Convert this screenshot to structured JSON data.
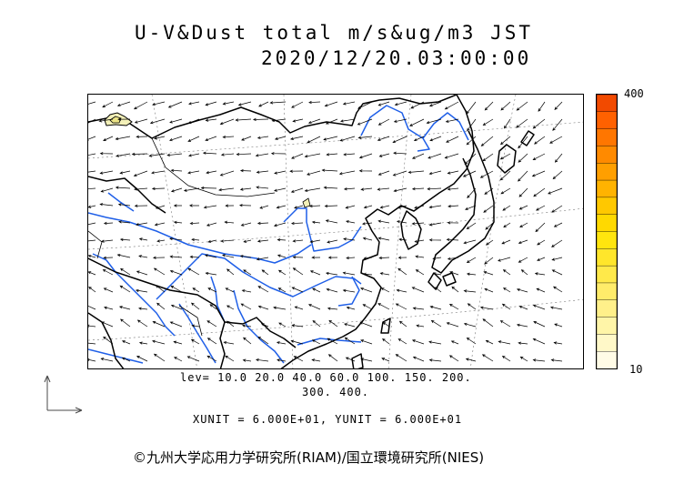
{
  "header": {
    "title": "U-V&Dust total m/s&ug/m3 JST",
    "datetime": "2020/12/20.03:00:00"
  },
  "colorbar": {
    "max_label": "400",
    "min_label": "10",
    "colors": [
      "#fffbe6",
      "#fff8c8",
      "#fff5a8",
      "#fff08a",
      "#ffec6a",
      "#ffe94a",
      "#ffe62b",
      "#ffe50e",
      "#ffd900",
      "#ffc800",
      "#ffb300",
      "#ff9f00",
      "#ff8a00",
      "#ff7600",
      "#ff6100",
      "#f24a00"
    ]
  },
  "footer": {
    "levels_line1": "lev= 10.0 20.0 40.0 60.0 100. 150. 200.",
    "levels_line2": "300. 400.",
    "units": "XUNIT = 6.000E+01, YUNIT = 6.000E+01",
    "copyright": "©九州大学応用力学研究所(RIAM)/国立環境研究所(NIES)"
  },
  "map": {
    "coast_color": "#000000",
    "river_color": "#1f5fe8",
    "dust_fill": "#f3f0b8"
  }
}
